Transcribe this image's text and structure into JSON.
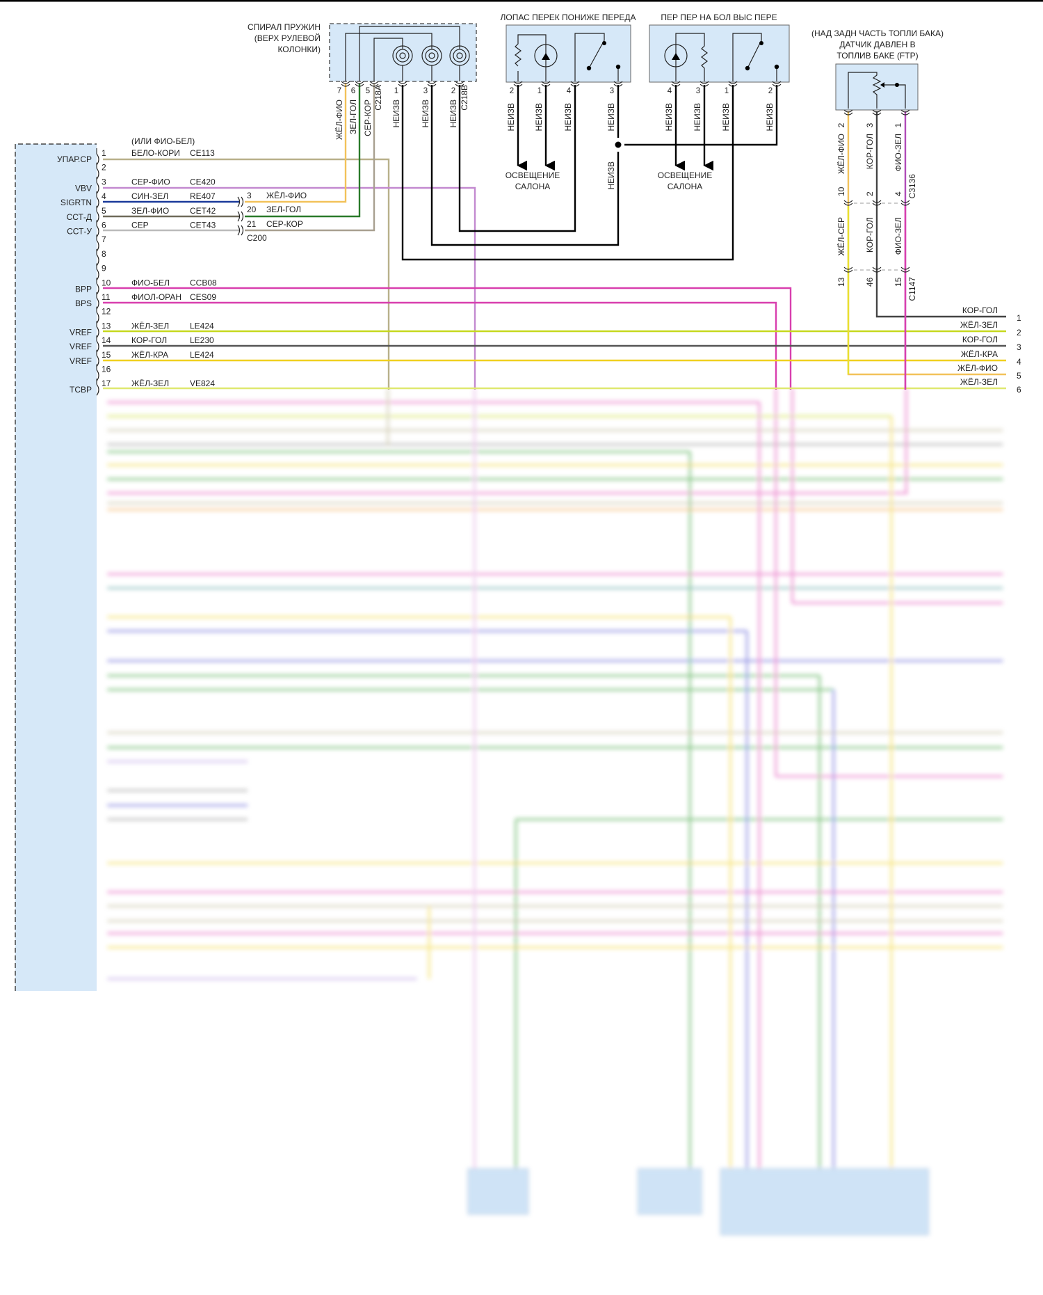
{
  "colors": {
    "component_fill": "#d6e8f8",
    "wire_white_brown": "#b8b08a",
    "wire_gray_violet": "#c38ad0",
    "wire_blue_green": "#1a3a9a",
    "wire_yellow_violet": "#f2c25a",
    "wire_green_blue": "#2a7a2a",
    "wire_gray_brown": "#a8a090",
    "wire_violet_white": "#d83fae",
    "wire_yellow_green": "#c6d81e",
    "wire_brown_blue": "#555555",
    "wire_yellow_red": "#f0d020"
  },
  "module": {
    "note_alt": "(ИЛИ ФИО-БЕЛ)",
    "pins": [
      {
        "num": "1",
        "signal": "УПАР.СР",
        "wire": "БЕЛО-КОРИ",
        "circuit": "CE113"
      },
      {
        "num": "2",
        "signal": "",
        "wire": "",
        "circuit": ""
      },
      {
        "num": "3",
        "signal": "VBV",
        "wire": "СЕР-ФИО",
        "circuit": "CE420"
      },
      {
        "num": "4",
        "signal": "SIGRTN",
        "wire": "СИН-ЗЕЛ",
        "circuit": "RE407"
      },
      {
        "num": "5",
        "signal": "ССТ-Д",
        "wire": "ЗЕЛ-ФИО",
        "circuit": "CET42"
      },
      {
        "num": "6",
        "signal": "ССТ-У",
        "wire": "СЕР",
        "circuit": "CET43"
      },
      {
        "num": "7",
        "signal": "",
        "wire": "",
        "circuit": ""
      },
      {
        "num": "8",
        "signal": "",
        "wire": "",
        "circuit": ""
      },
      {
        "num": "9",
        "signal": "",
        "wire": "",
        "circuit": ""
      },
      {
        "num": "10",
        "signal": "BPP",
        "wire": "ФИО-БЕЛ",
        "circuit": "CCB08"
      },
      {
        "num": "11",
        "signal": "BPS",
        "wire": "ФИОЛ-ОРАН",
        "circuit": "CES09"
      },
      {
        "num": "12",
        "signal": "",
        "wire": "",
        "circuit": ""
      },
      {
        "num": "13",
        "signal": "VREF",
        "wire": "ЖЁЛ-ЗЕЛ",
        "circuit": "LE424"
      },
      {
        "num": "14",
        "signal": "VREF",
        "wire": "КОР-ГОЛ",
        "circuit": "LE230"
      },
      {
        "num": "15",
        "signal": "VREF",
        "wire": "ЖЁЛ-КРА",
        "circuit": "LE424"
      },
      {
        "num": "16",
        "signal": "",
        "wire": "",
        "circuit": ""
      },
      {
        "num": "17",
        "signal": "TCBP",
        "wire": "ЖЁЛ-ЗЕЛ",
        "circuit": "VE824"
      }
    ]
  },
  "c200": {
    "name": "C200",
    "pins": [
      {
        "num": "3",
        "wire": "ЖЁЛ-ФИО"
      },
      {
        "num": "20",
        "wire": "ЗЕЛ-ГОЛ"
      },
      {
        "num": "21",
        "wire": "СЕР-КОР"
      }
    ]
  },
  "clockspring": {
    "title": [
      "СПИРАЛ ПРУЖИН",
      "(ВЕРХ РУЛЕВОЙ",
      "КОЛОНКИ)"
    ],
    "pins": [
      {
        "num": "7",
        "wire": "ЖЁЛ-ФИО"
      },
      {
        "num": "6",
        "wire": "ЗЕЛ-ГОЛ"
      },
      {
        "num": "5",
        "wire": "СЕР-КОР"
      },
      {
        "num": "1",
        "wire": "НЕИЗВ"
      },
      {
        "num": "3",
        "wire": "НЕИЗВ"
      },
      {
        "num": "2",
        "wire": "НЕИЗВ"
      }
    ],
    "connector_a": "C218A",
    "connector_b": "C218B"
  },
  "switch_downshift": {
    "title": "ЛОПАС ПЕРЕК ПОНИЖЕ ПЕРЕДА",
    "pins": [
      {
        "num": "2",
        "wire": "НЕИЗВ"
      },
      {
        "num": "1",
        "wire": "НЕИЗВ"
      },
      {
        "num": "4",
        "wire": "НЕИЗВ"
      },
      {
        "num": "3",
        "wire": "НЕИЗВ"
      }
    ],
    "lower_wire": "НЕИЗВ",
    "lighting": [
      "ОСВЕЩЕНИЕ",
      "САЛОНА"
    ]
  },
  "switch_upshift": {
    "title": "ПЕР ПЕР НА БОЛ ВЫС ПЕРЕ",
    "pins": [
      {
        "num": "4",
        "wire": "НЕИЗВ"
      },
      {
        "num": "3",
        "wire": "НЕИЗВ"
      },
      {
        "num": "1",
        "wire": "НЕИЗВ"
      },
      {
        "num": "2",
        "wire": "НЕИЗВ"
      }
    ],
    "lighting": [
      "ОСВЕЩЕНИЕ",
      "САЛОНА"
    ]
  },
  "ftp_sensor": {
    "title": [
      "(НАД ЗАДН ЧАСТЬ ТОПЛИ БАКА)",
      "ДАТЧИК ДАВЛЕН В",
      "ТОПЛИВ БАКЕ (FTP)"
    ],
    "upper": [
      {
        "num": "2",
        "wire": "ЖЁЛ-ФИО"
      },
      {
        "num": "3",
        "wire": "КОР-ГОЛ"
      },
      {
        "num": "1",
        "wire": "ФИО-ЗЕЛ"
      }
    ],
    "c3136": {
      "name": "C3136",
      "pins": [
        "10",
        "2",
        "4"
      ]
    },
    "lower": [
      {
        "wire": "ЖЁЛ-СЕР"
      },
      {
        "wire": "КОР-ГОЛ"
      },
      {
        "wire": "ФИО-ЗЕЛ"
      }
    ],
    "c1147": {
      "name": "C1147",
      "pins": [
        "13",
        "46",
        "15"
      ]
    }
  },
  "right_edge": [
    {
      "num": "1",
      "wire": "КОР-ГОЛ"
    },
    {
      "num": "2",
      "wire": "ЖЁЛ-ЗЕЛ"
    },
    {
      "num": "3",
      "wire": "КОР-ГОЛ"
    },
    {
      "num": "4",
      "wire": "ЖЁЛ-КРА"
    },
    {
      "num": "5",
      "wire": "ЖЁЛ-ФИО"
    },
    {
      "num": "6",
      "wire": "ЖЁЛ-ЗЕЛ"
    }
  ]
}
